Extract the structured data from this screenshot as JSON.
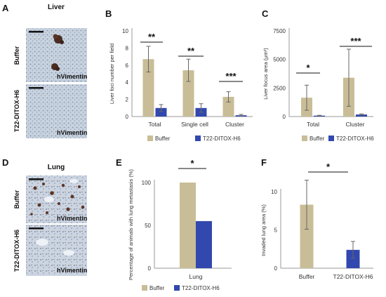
{
  "colors": {
    "buffer": "#c8bd96",
    "t22": "#3248ae",
    "axis": "#999999",
    "errorbar": "#666666"
  },
  "figure": {
    "panels": {
      "A": {
        "letter": "A",
        "title": "Liver",
        "rows": [
          {
            "label": "Buffer",
            "stain": "hVimentin"
          },
          {
            "label": "T22-DITOX-H6",
            "stain": "hVimentin"
          }
        ]
      },
      "D": {
        "letter": "D",
        "title": "Lung",
        "rows": [
          {
            "label": "Buffer",
            "stain": "hVimentin"
          },
          {
            "label": "T22-DITOX-H6",
            "stain": "hVimentin"
          }
        ]
      }
    },
    "legend": {
      "buffer": "Buffer",
      "t22": "T22-DITOX-H6"
    }
  },
  "chart_data": [
    {
      "id": "B",
      "letter": "B",
      "type": "bar",
      "ylabel": "Liver foci number per field",
      "ylim": [
        0,
        10
      ],
      "yticks": [
        "0",
        "2",
        "4",
        "6",
        "8",
        "10"
      ],
      "categories": [
        "Total",
        "Single cell",
        "Cluster"
      ],
      "series": [
        {
          "name": "Buffer",
          "values": [
            6.7,
            5.4,
            2.3
          ],
          "errors": [
            1.5,
            1.3,
            0.6
          ]
        },
        {
          "name": "T22-DITOX-H6",
          "values": [
            1.0,
            1.0,
            0.15
          ],
          "errors": [
            0.4,
            0.5,
            0.1
          ]
        }
      ],
      "significance": [
        "**",
        "**",
        "***"
      ],
      "grid": false,
      "legend_position": "bottom"
    },
    {
      "id": "C",
      "letter": "C",
      "type": "bar",
      "ylabel": "Liver focus area (μm²)",
      "ylim": [
        0,
        7500
      ],
      "yticks": [
        "0",
        "2500",
        "5000",
        "7500"
      ],
      "categories": [
        "Total",
        "Cluster"
      ],
      "series": [
        {
          "name": "Buffer",
          "values": [
            1650,
            3400
          ],
          "errors": [
            1100,
            2500
          ]
        },
        {
          "name": "T22-DITOX-H6",
          "values": [
            80,
            180
          ],
          "errors": [
            30,
            50
          ]
        }
      ],
      "significance": [
        "*",
        "***"
      ],
      "grid": false,
      "legend_position": "bottom"
    },
    {
      "id": "E",
      "letter": "E",
      "type": "bar",
      "ylabel": "Percentage of animals with lung metastasis (%)",
      "ylim": [
        0,
        100
      ],
      "yticks": [
        "0",
        "50",
        "100"
      ],
      "categories": [
        "Lung"
      ],
      "series": [
        {
          "name": "Buffer",
          "values": [
            100
          ]
        },
        {
          "name": "T22-DITOX-H6",
          "values": [
            55
          ]
        }
      ],
      "significance": [
        "*"
      ],
      "grid": false,
      "legend_position": "bottom"
    },
    {
      "id": "F",
      "letter": "F",
      "type": "bar",
      "ylabel": "Invaded lung area (%)",
      "ylim": [
        0,
        10
      ],
      "yticks": [
        "0",
        "5",
        "10"
      ],
      "categories": [
        "Buffer",
        "T22-DITOX-H6"
      ],
      "series": [
        {
          "name": "Buffer",
          "values": [
            8.3,
            null
          ],
          "errors": [
            3.2,
            null
          ]
        },
        {
          "name": "T22-DITOX-H6",
          "values": [
            null,
            2.4
          ],
          "errors": [
            null,
            1.1
          ]
        }
      ],
      "significance": [
        "*"
      ],
      "grid": false,
      "legend_position": "none"
    }
  ]
}
